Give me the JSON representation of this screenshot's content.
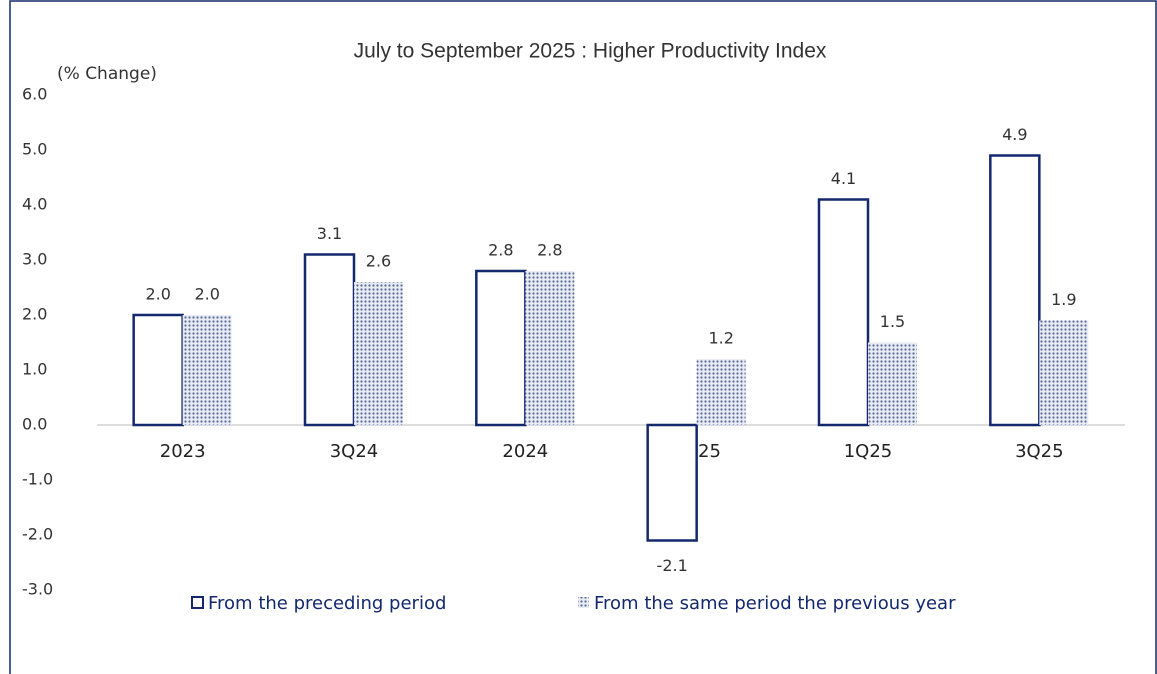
{
  "chart_data": {
    "type": "bar",
    "title": "July to September 2025  : Higher Productivity Index",
    "y_label": "(% Change)",
    "categories": [
      "2023",
      "3Q24",
      "2024",
      "1Q25",
      "1Q25",
      "3Q25"
    ],
    "series": [
      {
        "name": "From the preceding period",
        "color": "#14286e",
        "values": [
          2.0,
          3.1,
          2.8,
          -2.1,
          4.1,
          4.9
        ],
        "value_labels": [
          "2.0",
          "3.1",
          "2.8",
          "-2.1",
          "4.1",
          "4.9"
        ]
      },
      {
        "name": "From the same period the previous year",
        "color": "#5a6a9a",
        "values": [
          2.0,
          2.6,
          2.8,
          1.2,
          1.5,
          1.9
        ],
        "value_labels": [
          "2.0",
          "2.6",
          "2.8",
          "1.2",
          "1.5",
          "1.9"
        ]
      }
    ],
    "ylim": [
      -3,
      6
    ],
    "yticks": [
      {
        "value": -3,
        "label": "-3.0"
      },
      {
        "value": -2,
        "label": "-2.0"
      },
      {
        "value": -1,
        "label": "-1.0"
      },
      {
        "value": 0,
        "label": "0.0"
      },
      {
        "value": 1,
        "label": "1.0"
      },
      {
        "value": 2,
        "label": "2.0"
      },
      {
        "value": 3,
        "label": "3.0"
      },
      {
        "value": 4,
        "label": "4.0"
      },
      {
        "value": 5,
        "label": "5.0"
      },
      {
        "value": 6,
        "label": "6.0"
      }
    ],
    "legend": "bottom"
  }
}
